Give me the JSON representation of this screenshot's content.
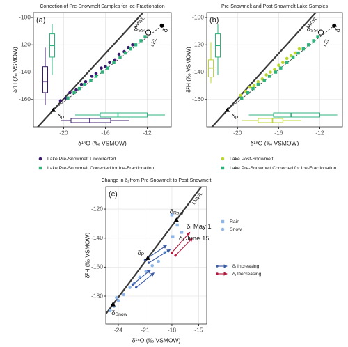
{
  "chart_data": [
    {
      "type": "scatter",
      "panel_label": "(a)",
      "title": "Correction of Pre-Snowmelt Samples for Ice-Fractionation",
      "xlabel": "δ¹⁸O (‰ VSMOW)",
      "ylabel": "δ²H (‰ VSMOW)",
      "xlim": [
        -22.9,
        -9.7
      ],
      "ylim": [
        -180,
        -96.4
      ],
      "xticks": [
        -20,
        -16,
        -12
      ],
      "yticks": [
        -100,
        -120,
        -140,
        -160
      ],
      "grid": true,
      "lines": [
        {
          "name": "LMWL",
          "slope": 8.3,
          "intercept": 6.5,
          "color": "#3a3a3a"
        }
      ],
      "lel_label": "LEL",
      "points": [
        {
          "label": [
            "δ",
            {
              "sub": "P"
            }
          ],
          "x": -21,
          "y": -167.8,
          "marker": "triangle"
        },
        {
          "label": [
            "δ",
            {
              "sub": "SSI"
            }
          ],
          "x": -11.9,
          "y": -111,
          "marker": "open-circle"
        },
        {
          "label": [
            "δ",
            {
              "sup": "*"
            }
          ],
          "x": -10.6,
          "y": -106,
          "marker": "dot"
        }
      ],
      "series": [
        {
          "name": "Lake Pre-Snowmelt Uncorrected",
          "color": "#3b1a6e",
          "marker": "circle",
          "x": [
            -20.3,
            -19.8,
            -19.4,
            -18.8,
            -18.3,
            -17.9,
            -17.3,
            -16.9,
            -16.4,
            -16.0,
            -15.6,
            -15.1,
            -14.7,
            -14.2,
            -13.8,
            -13.4
          ],
          "y": [
            -161,
            -159,
            -155,
            -153,
            -149,
            -147,
            -143,
            -141,
            -137,
            -136,
            -133,
            -131,
            -127,
            -125,
            -122,
            -120
          ],
          "box_y": [
            -164,
            -155,
            -147,
            -136,
            -122
          ],
          "box_x": [
            -20.3,
            -19.3,
            -17.5,
            -15.5,
            -13.7
          ]
        },
        {
          "name": "Lake Pre-Snowmelt Corrected for Ice-Fractionation",
          "color": "#2eb37c",
          "marker": "square",
          "x": [
            -19.6,
            -19.0,
            -18.5,
            -18.0,
            -17.4,
            -16.9,
            -16.3,
            -15.8,
            -15.2,
            -14.6,
            -14.1,
            -13.6,
            -13.1,
            -12.6,
            -12.2
          ],
          "y": [
            -159,
            -155,
            -152,
            -149,
            -146,
            -143,
            -140,
            -137,
            -133,
            -129,
            -126,
            -123,
            -120,
            -117,
            -114
          ],
          "box_y": [
            -142,
            -129,
            -120.5,
            -112,
            -105
          ],
          "box_x": [
            -18.9,
            -16.5,
            -14.8,
            -12.0,
            -10.3
          ]
        }
      ]
    },
    {
      "type": "scatter",
      "panel_label": "(b)",
      "title": "Pre-Snowmelt and Post-Snowmelt Lake Samples",
      "xlabel": "δ¹⁸O (‰ VSMOW)",
      "ylabel": "δ²H (‰ VSMOW)",
      "xlim": [
        -23,
        -9.8
      ],
      "ylim": [
        -180,
        -96.4
      ],
      "xticks": [
        -20,
        -16,
        -12
      ],
      "yticks": [
        -100,
        -120,
        -140,
        -160
      ],
      "grid": true,
      "lines": [
        {
          "name": "LMWL",
          "slope": 8.3,
          "intercept": 6.5,
          "color": "#3a3a3a"
        }
      ],
      "lel_label": "LEL",
      "points": [
        {
          "label": [
            "δ",
            {
              "sub": "P"
            }
          ],
          "x": -21,
          "y": -167.8,
          "marker": "triangle"
        },
        {
          "label": [
            "δ",
            {
              "sub": "SSI"
            }
          ],
          "x": -11.9,
          "y": -111,
          "marker": "open-circle"
        },
        {
          "label": [
            "δ",
            {
              "sup": "*"
            }
          ],
          "x": -10.6,
          "y": -106,
          "marker": "dot"
        }
      ],
      "series": [
        {
          "name": "Lake Post-Snowmelt",
          "color": "#bcd630",
          "marker": "circle",
          "x": [
            -19.7,
            -19.2,
            -18.8,
            -18.4,
            -18.0,
            -17.6,
            -17.2,
            -16.8,
            -16.4,
            -16.0,
            -15.6,
            -15.2,
            -14.8,
            -14.4,
            -14.0
          ],
          "y": [
            -157,
            -154,
            -151,
            -150,
            -147,
            -145,
            -142,
            -140,
            -138,
            -135,
            -133,
            -130,
            -128,
            -126,
            -123
          ],
          "box_y": [
            -148,
            -143.6,
            -137,
            -131,
            -118
          ],
          "box_x": [
            -19.6,
            -18.0,
            -16.6,
            -15.6,
            -13.8
          ]
        },
        {
          "name": "Lake Pre-Snowmelt Corrected for Ice-Fractionation",
          "color": "#2eb37c",
          "marker": "square",
          "x": [
            -19.6,
            -19.0,
            -18.5,
            -18.0,
            -17.4,
            -16.9,
            -16.3,
            -15.8,
            -15.2,
            -14.6,
            -14.1,
            -13.6,
            -13.1,
            -12.6,
            -12.2
          ],
          "y": [
            -159,
            -155,
            -152,
            -149,
            -146,
            -143,
            -140,
            -137,
            -133,
            -129,
            -126,
            -123,
            -120,
            -117,
            -114
          ],
          "box_y": [
            -142,
            -129,
            -120.5,
            -112,
            -105
          ],
          "box_x": [
            -18.9,
            -16.5,
            -14.8,
            -12.0,
            -10.3
          ]
        }
      ]
    },
    {
      "type": "scatter",
      "panel_label": "(c)",
      "title": [
        "Change in δ",
        {
          "sub": "I"
        },
        " from Pre-Snowmelt to Post-Snowmelt"
      ],
      "xlabel": "δ¹⁸O (‰ VSMOW)",
      "ylabel": "δ²H (‰ VSMOW)",
      "xlim": [
        -25.4,
        -14.1
      ],
      "ylim": [
        -199.2,
        -104.6
      ],
      "xticks": [
        -24,
        -21,
        -18,
        -15
      ],
      "yticks": [
        -120,
        -140,
        -160,
        -180
      ],
      "grid": true,
      "lines": [
        {
          "name": "LMWL",
          "slope": 8.2,
          "intercept": 16,
          "color": "#3a3a3a"
        }
      ],
      "points": [
        {
          "label": [
            "δ",
            {
              "sub": "Rain"
            }
          ],
          "x": -17.5,
          "y": -127.5,
          "marker": "triangle"
        },
        {
          "label": [
            "δ",
            {
              "sub": "P"
            }
          ],
          "x": -20.7,
          "y": -153.7,
          "marker": "triangle"
        },
        {
          "label": [
            "δ",
            {
              "sub": "Snow"
            }
          ],
          "x": -24.6,
          "y": -185.7,
          "marker": "triangle"
        }
      ],
      "series": [
        {
          "name": "Rain",
          "color": "#8fb6e8",
          "marker": "square",
          "x": [
            -18.0,
            -17.4,
            -17.9,
            -16.9
          ],
          "y": [
            -124,
            -131,
            -139,
            -136
          ]
        },
        {
          "name": "Snow",
          "color": "#8fb6e8",
          "marker": "circle",
          "x": [
            -24.9,
            -24.5,
            -24.2,
            -24.0,
            -23.4,
            -22.7,
            -22.2,
            -21.6,
            -20.9,
            -20.2,
            -19.5,
            -18.8
          ],
          "y": [
            -190,
            -187,
            -181,
            -183,
            -179,
            -174,
            -171,
            -167,
            -163,
            -159,
            -156,
            -150
          ]
        }
      ],
      "arrows": [
        {
          "name": [
            "δ",
            {
              "sub": "I"
            },
            " Increasing"
          ],
          "color": "#3b5ba5",
          "x_from": [
            -22.4,
            -22.0,
            -21.0,
            -20.6
          ],
          "y_from": [
            -172,
            -174,
            -155,
            -157
          ],
          "x_to": [
            -20.4,
            -20.0,
            -18.6,
            -18.2
          ],
          "y_to": [
            -162,
            -164,
            -145,
            -148
          ]
        },
        {
          "name": [
            "δ",
            {
              "sub": "I"
            },
            " Decreasing"
          ],
          "color": "#b2183b",
          "x_from": [
            -18.0,
            -17.6
          ],
          "y_from": [
            -150,
            -152
          ],
          "x_to": [
            -16.0,
            -15.7
          ],
          "y_to": [
            -136,
            -140
          ]
        }
      ],
      "annotations": [
        [
          "δ",
          {
            "sub": "I"
          },
          " May 1"
        ],
        [
          "δ",
          {
            "sub": "I"
          },
          " June 15"
        ]
      ]
    }
  ]
}
